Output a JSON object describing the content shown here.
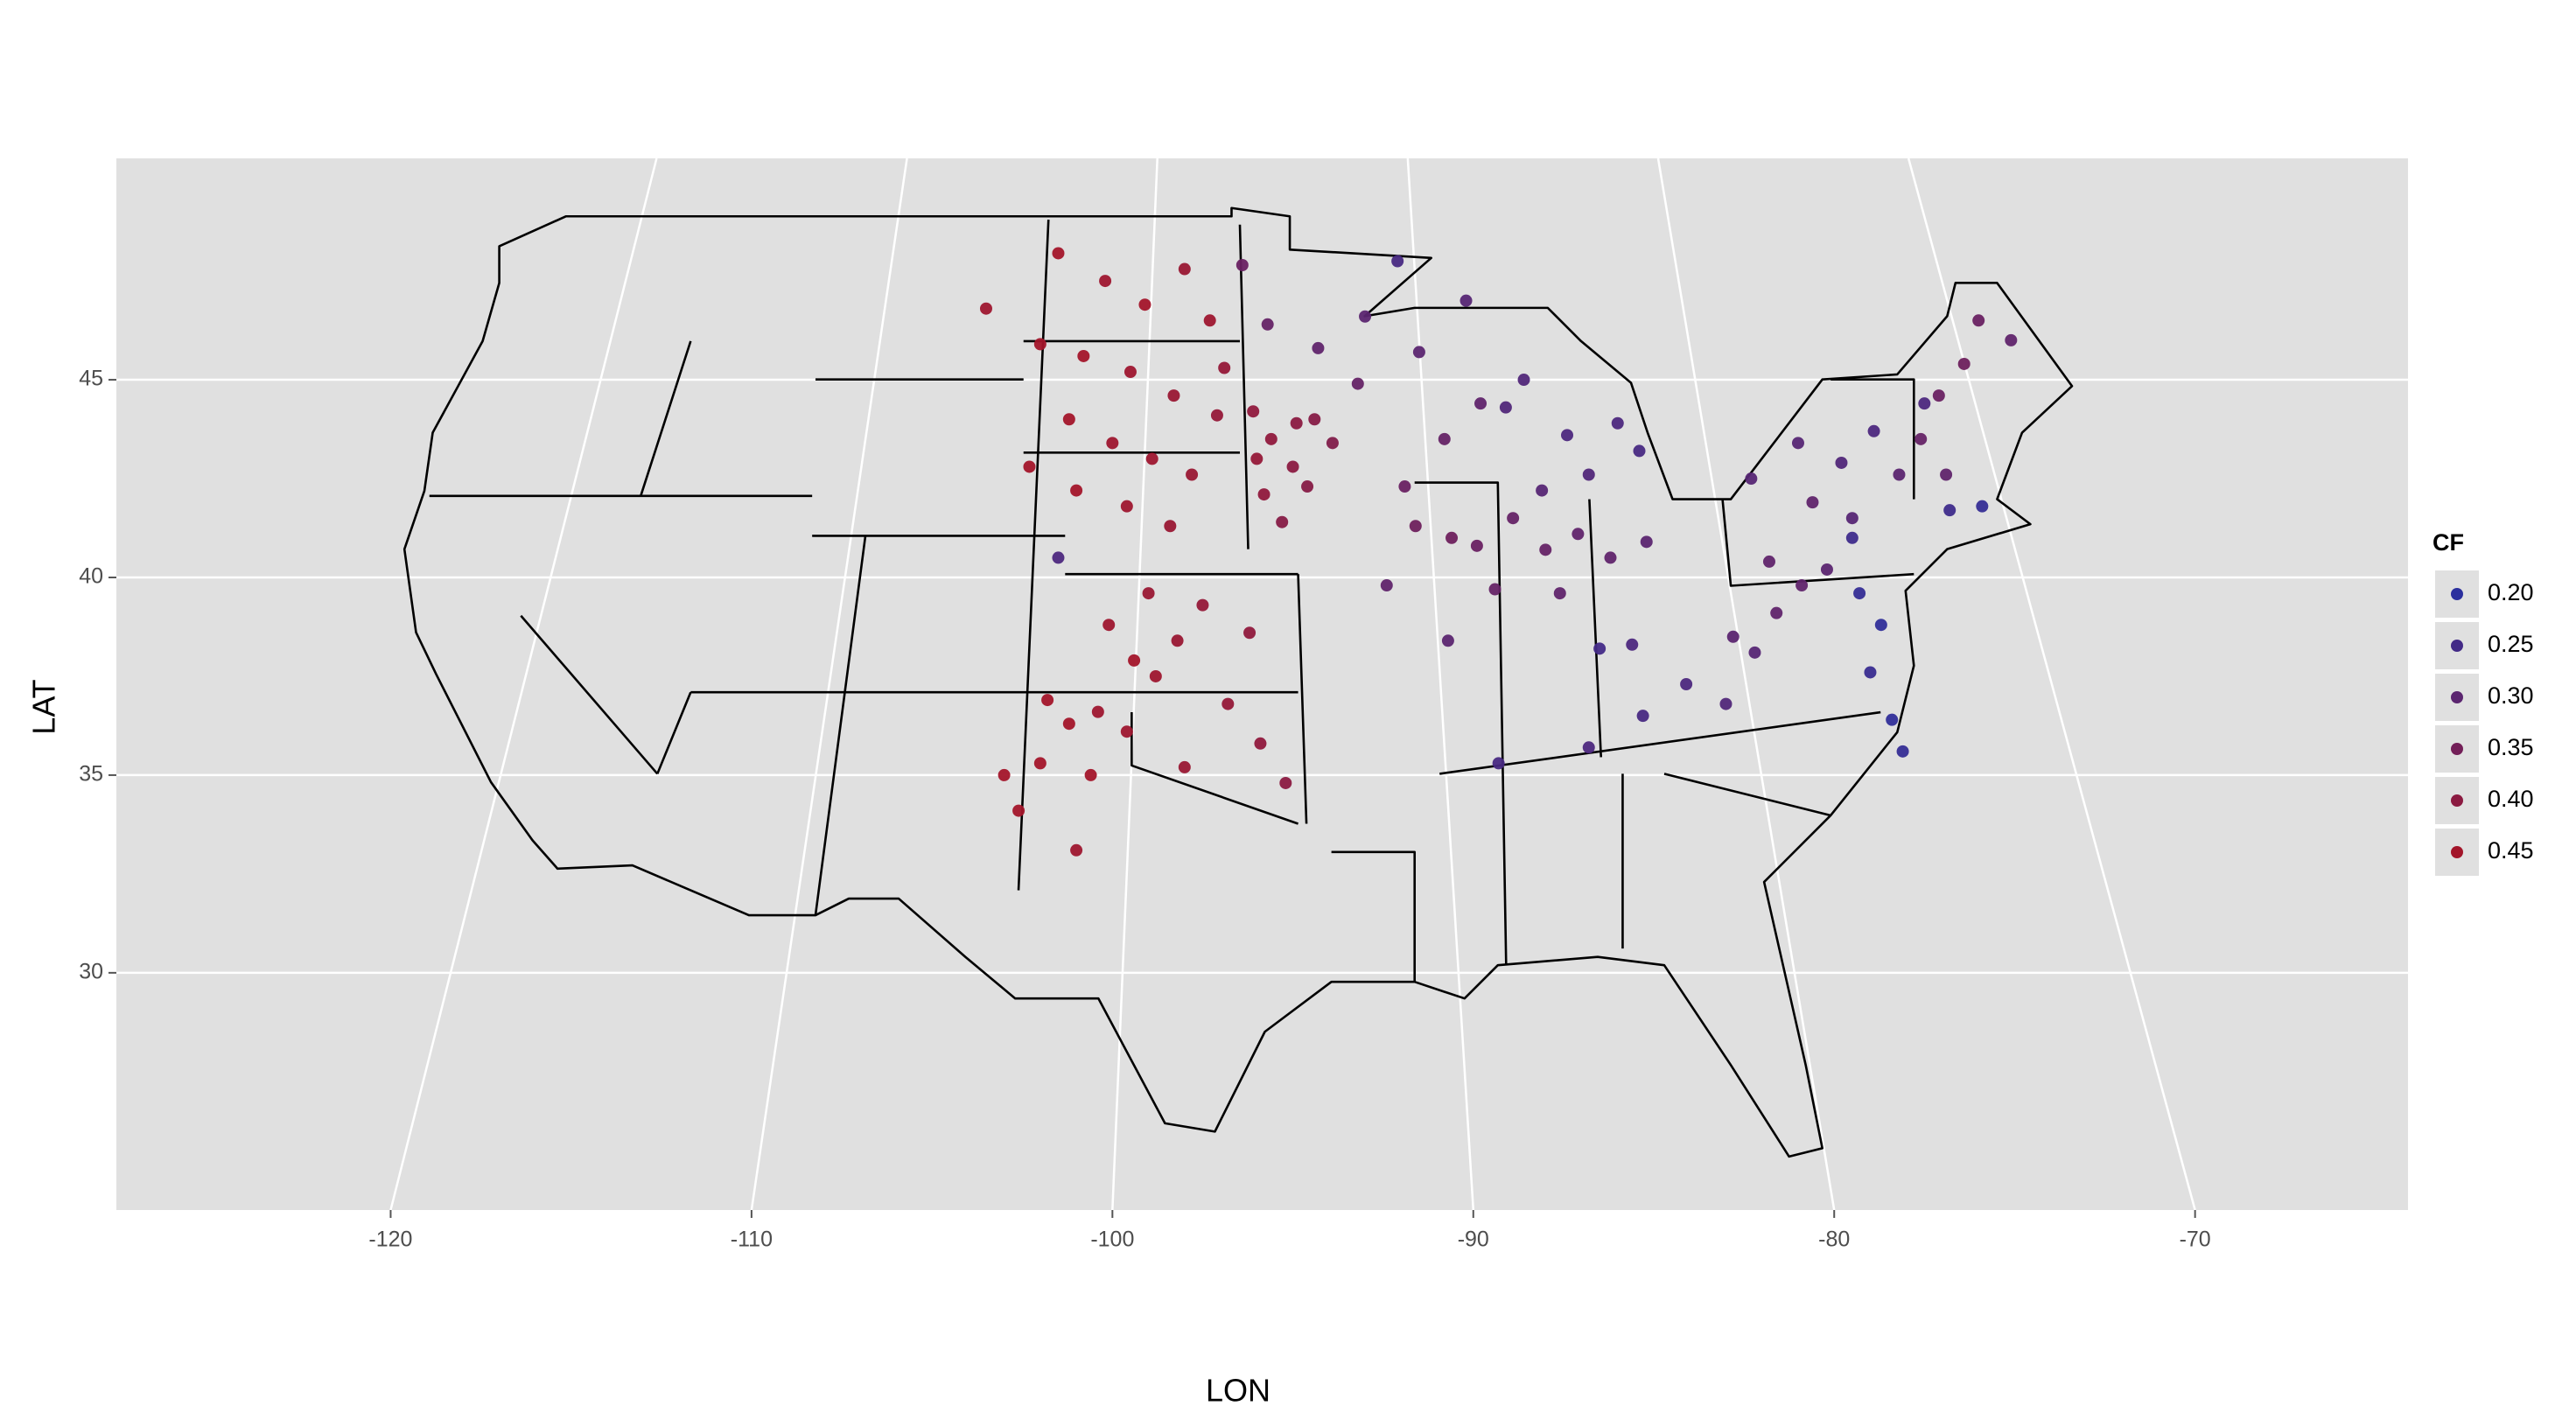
{
  "chart_data": {
    "type": "scatter",
    "x_label": "LON",
    "y_label": "LAT",
    "xlim": [
      -127.6,
      -64.1
    ],
    "ylim": [
      24,
      50.6
    ],
    "xticks": [
      -120,
      -110,
      -100,
      -90,
      -80,
      -70
    ],
    "yticks": [
      30,
      35,
      40,
      45
    ],
    "grid": true,
    "color_low": "#2b2f9e",
    "color_high": "#a3152a",
    "legend": {
      "title": "CF",
      "position": "right",
      "values": [
        {
          "value": 0.2,
          "label": "0.20"
        },
        0.25,
        {
          "value": 0.3,
          "label": "0.30"
        },
        0.35,
        {
          "value": 0.4,
          "label": "0.40"
        },
        0.45
      ]
    },
    "x": [
      -101.5,
      -100.2,
      -99.1,
      -98.0,
      -97.3,
      -102.0,
      -100.8,
      -99.5,
      -98.3,
      -97.1,
      -101.2,
      -100.0,
      -98.9,
      -97.8,
      -102.3,
      -101.0,
      -99.6,
      -98.4,
      -103.5,
      -96.9,
      -96.1,
      -95.6,
      -95.0,
      -94.4,
      -95.8,
      -94.9,
      -93.9,
      -95.3,
      -96.0,
      -94.6,
      -103.0,
      -102.0,
      -101.2,
      -100.4,
      -99.6,
      -98.8,
      -99.4,
      -98.2,
      -97.5,
      -96.8,
      -95.9,
      -98.0,
      -100.6,
      -101.8,
      -100.1,
      -99.0,
      -96.2,
      -95.2,
      -102.6,
      -101.0,
      -96.4,
      -95.7,
      -94.3,
      -93.2,
      -91.5,
      -90.2,
      -89.8,
      -90.8,
      -91.9,
      -93.0,
      -91.6,
      -90.6,
      -89.9,
      -88.9,
      -88.0,
      -87.1,
      -86.2,
      -85.2,
      -89.4,
      -90.7,
      -92.4,
      -87.6,
      -88.6,
      -87.4,
      -86.0,
      -85.4,
      -86.8,
      -88.1,
      -89.1,
      -86.8,
      -85.3,
      -84.1,
      -83.0,
      -82.2,
      -81.6,
      -80.9,
      -82.8,
      -85.6,
      -82.3,
      -81.0,
      -79.8,
      -78.9,
      -77.5,
      -78.2,
      -79.5,
      -80.6,
      -81.8,
      -80.2,
      -76.0,
      -76.4,
      -77.1,
      -77.6,
      -76.9,
      -75.1,
      -76.8,
      -75.9,
      -79.3,
      -78.7,
      -79.0,
      -78.4,
      -78.1,
      -79.5,
      -101.5,
      -86.5,
      -89.3,
      -92.1
    ],
    "y": [
      48.2,
      47.5,
      46.9,
      47.8,
      46.5,
      45.9,
      45.6,
      45.2,
      44.6,
      44.1,
      44.0,
      43.4,
      43.0,
      42.6,
      42.8,
      42.2,
      41.8,
      41.3,
      46.8,
      45.3,
      44.2,
      43.5,
      42.8,
      44.0,
      42.1,
      43.9,
      43.4,
      41.4,
      43.0,
      42.3,
      35.0,
      35.3,
      36.3,
      36.6,
      36.1,
      37.5,
      37.9,
      38.4,
      39.3,
      36.8,
      35.8,
      35.2,
      35.0,
      36.9,
      38.8,
      39.6,
      38.6,
      34.8,
      34.1,
      33.1,
      47.9,
      46.4,
      45.8,
      44.9,
      45.7,
      47.0,
      44.4,
      43.5,
      42.3,
      46.6,
      41.3,
      41.0,
      40.8,
      41.5,
      40.7,
      41.1,
      40.5,
      40.9,
      39.7,
      38.4,
      39.8,
      39.6,
      45.0,
      43.6,
      43.9,
      43.2,
      42.6,
      42.2,
      44.3,
      35.7,
      36.5,
      37.3,
      36.8,
      38.1,
      39.1,
      39.8,
      38.5,
      38.3,
      42.5,
      43.4,
      42.9,
      43.7,
      44.4,
      42.6,
      41.5,
      41.9,
      40.4,
      40.2,
      46.5,
      45.4,
      44.6,
      43.5,
      42.6,
      46.0,
      41.7,
      41.8,
      39.6,
      38.8,
      37.6,
      36.4,
      35.6,
      41.0,
      40.5,
      38.2,
      35.3,
      48.0
    ],
    "cf": [
      0.45,
      0.44,
      0.45,
      0.43,
      0.44,
      0.45,
      0.45,
      0.44,
      0.43,
      0.42,
      0.45,
      0.44,
      0.44,
      0.43,
      0.45,
      0.45,
      0.44,
      0.43,
      0.44,
      0.42,
      0.41,
      0.41,
      0.4,
      0.39,
      0.41,
      0.4,
      0.38,
      0.39,
      0.42,
      0.39,
      0.45,
      0.46,
      0.45,
      0.44,
      0.44,
      0.44,
      0.45,
      0.43,
      0.42,
      0.42,
      0.41,
      0.43,
      0.45,
      0.45,
      0.44,
      0.43,
      0.41,
      0.4,
      0.45,
      0.44,
      0.33,
      0.32,
      0.31,
      0.32,
      0.3,
      0.29,
      0.31,
      0.32,
      0.33,
      0.3,
      0.34,
      0.34,
      0.33,
      0.32,
      0.32,
      0.31,
      0.31,
      0.3,
      0.32,
      0.3,
      0.31,
      0.31,
      0.28,
      0.27,
      0.27,
      0.26,
      0.28,
      0.29,
      0.28,
      0.27,
      0.26,
      0.27,
      0.28,
      0.29,
      0.31,
      0.31,
      0.3,
      0.27,
      0.29,
      0.29,
      0.28,
      0.27,
      0.27,
      0.3,
      0.29,
      0.31,
      0.31,
      0.3,
      0.33,
      0.34,
      0.33,
      0.32,
      0.31,
      0.31,
      0.24,
      0.22,
      0.22,
      0.21,
      0.23,
      0.21,
      0.22,
      0.24,
      0.27,
      0.25,
      0.26,
      0.26
    ]
  }
}
